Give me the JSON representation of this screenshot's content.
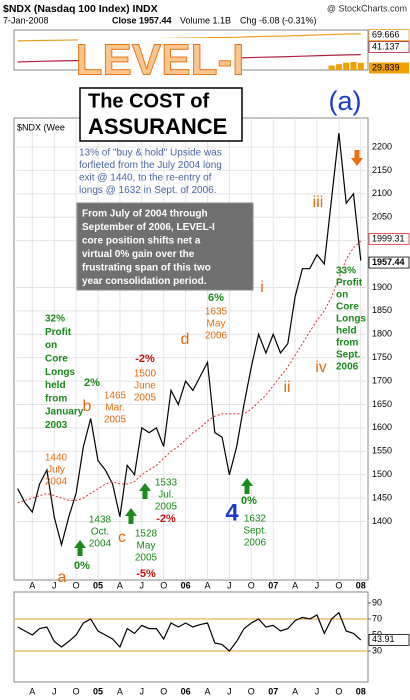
{
  "header": {
    "ticker": "$NDX (Nasdaq 100 Index) INDX",
    "source": "@ StockCharts.com",
    "date": "7-Jan-2008",
    "close": "Close 1957.44",
    "volume": "Volume 1.1B",
    "change": "Chg -6.08 (-0.31%)",
    "logo": "LEVEL-I",
    "title": [
      "The COST of",
      "ASSURANCE"
    ]
  },
  "chart_data": [
    {
      "type": "line",
      "x": [
        "2004-02",
        "2004-03",
        "2004-04",
        "2004-05",
        "2004-06",
        "2004-07",
        "2004-08",
        "2004-09",
        "2004-10",
        "2004-11",
        "2004-12",
        "2005-01",
        "2005-02",
        "2005-03",
        "2005-04",
        "2005-05",
        "2005-06",
        "2005-07",
        "2005-08",
        "2005-09",
        "2005-10",
        "2005-11",
        "2005-12",
        "2006-01",
        "2006-02",
        "2006-03",
        "2006-04",
        "2006-05",
        "2006-06",
        "2006-07",
        "2006-08",
        "2006-09",
        "2006-10",
        "2006-11",
        "2006-12",
        "2007-01",
        "2007-02",
        "2007-03",
        "2007-04",
        "2007-05",
        "2007-06",
        "2007-07",
        "2007-08",
        "2007-09",
        "2007-10",
        "2007-11",
        "2007-12",
        "2008-01"
      ],
      "series": [
        {
          "color": "#000000",
          "values": [
            1470,
            1440,
            1420,
            1480,
            1510,
            1410,
            1350,
            1410,
            1460,
            1560,
            1620,
            1530,
            1510,
            1480,
            1410,
            1520,
            1500,
            1600,
            1590,
            1600,
            1560,
            1680,
            1650,
            1700,
            1680,
            1710,
            1740,
            1590,
            1580,
            1500,
            1560,
            1650,
            1730,
            1800,
            1760,
            1800,
            1760,
            1780,
            1880,
            1940,
            1940,
            1970,
            1950,
            2090,
            2230,
            2080,
            2100,
            1957.44
          ]
        },
        {
          "color": "#e03030",
          "values": [
            1440,
            1445,
            1450,
            1455,
            1460,
            1455,
            1450,
            1445,
            1445,
            1450,
            1460,
            1470,
            1480,
            1485,
            1480,
            1480,
            1485,
            1500,
            1510,
            1520,
            1535,
            1550,
            1560,
            1575,
            1590,
            1600,
            1615,
            1625,
            1630,
            1630,
            1630,
            1630,
            1640,
            1655,
            1670,
            1690,
            1710,
            1730,
            1755,
            1780,
            1805,
            1830,
            1850,
            1880,
            1920,
            1960,
            1985,
            1999.31
          ]
        }
      ],
      "ylim": [
        1275,
        2262
      ],
      "yticks": [
        1400,
        1450,
        1500,
        1550,
        1600,
        1650,
        1700,
        1750,
        1800,
        1850,
        1900,
        2000,
        2050,
        2100,
        2150,
        2200
      ],
      "xticks": [
        {
          "value": "2004-04",
          "label": "A"
        },
        {
          "value": "2004-07",
          "label": "J"
        },
        {
          "value": "2004-10",
          "label": "O"
        },
        {
          "value": "2005-01",
          "label": "05"
        },
        {
          "value": "2005-04",
          "label": "A"
        },
        {
          "value": "2005-07",
          "label": "J"
        },
        {
          "value": "2005-10",
          "label": "O"
        },
        {
          "value": "2006-01",
          "label": "06"
        },
        {
          "value": "2006-04",
          "label": "A"
        },
        {
          "value": "2006-07",
          "label": "J"
        },
        {
          "value": "2006-10",
          "label": "O"
        },
        {
          "value": "2007-01",
          "label": "07"
        },
        {
          "value": "2007-04",
          "label": "A"
        },
        {
          "value": "2007-07",
          "label": "J"
        },
        {
          "value": "2007-10",
          "label": "O"
        },
        {
          "value": "2008-01",
          "label": "08"
        }
      ],
      "grid": true,
      "annotations": [
        {
          "lines": [
            "(a)"
          ],
          "color": "#1a3cc8"
        },
        {
          "lines": [
            "13% of \"buy & hold\" Upside was",
            "forfieted from the July 2004 long",
            "exit @ 1440, to the re-entry of",
            "longs @ 1632 in Sept. of 2006."
          ],
          "color": "#4a66a8"
        },
        {
          "lines": [
            "From July of 2004 through",
            "September of 2006, LEVEL-I",
            "core position shifts net a",
            "virtual 0% gain over the",
            "frustrating span of this two",
            "year consolidation period."
          ],
          "color": "#ffffff",
          "background": "#707070"
        },
        {
          "lines": [
            "32%",
            "Profit",
            "on",
            "Core",
            "Longs",
            "held",
            "from",
            "January",
            "2003"
          ],
          "color": "#1a8a1a"
        },
        {
          "lines": [
            "1440",
            "July",
            "2004"
          ],
          "color": "#e86a10"
        },
        {
          "lines": [
            "b"
          ],
          "color": "#e86a10"
        },
        {
          "lines": [
            "2%"
          ],
          "color": "#1a8a1a"
        },
        {
          "lines": [
            "1465",
            "Mar.",
            "2005"
          ],
          "color": "#e86a10"
        },
        {
          "lines": [
            "-2%"
          ],
          "color": "#cc1010"
        },
        {
          "lines": [
            "1500",
            "June",
            "2005"
          ],
          "color": "#e86a10"
        },
        {
          "lines": [
            "d"
          ],
          "color": "#e86a10"
        },
        {
          "lines": [
            "6%"
          ],
          "color": "#1a8a1a"
        },
        {
          "lines": [
            "1635",
            "May",
            "2006"
          ],
          "color": "#e86a10"
        },
        {
          "lines": [
            "i"
          ],
          "color": "#e86a10"
        },
        {
          "lines": [
            "ii"
          ],
          "color": "#e86a10"
        },
        {
          "lines": [
            "iii"
          ],
          "color": "#e86a10"
        },
        {
          "lines": [
            "iv"
          ],
          "color": "#e86a10"
        },
        {
          "lines": [
            "1533",
            "Jul.",
            "2005"
          ],
          "color": "#1a8a1a"
        },
        {
          "lines": [
            "-2%"
          ],
          "color": "#cc1010"
        },
        {
          "lines": [
            "1438",
            "Oct.",
            "2004"
          ],
          "color": "#1a8a1a"
        },
        {
          "lines": [
            "0%"
          ],
          "color": "#1a8a1a"
        },
        {
          "lines": [
            "c"
          ],
          "color": "#e86a10"
        },
        {
          "lines": [
            "1528",
            "May",
            "2005"
          ],
          "color": "#1a8a1a"
        },
        {
          "lines": [
            "-5%"
          ],
          "color": "#cc1010"
        },
        {
          "lines": [
            "4"
          ],
          "color": "#1a3cc8"
        },
        {
          "lines": [
            "0%"
          ],
          "color": "#1a8a1a"
        },
        {
          "lines": [
            "1632",
            "Sept.",
            "2006"
          ],
          "color": "#1a8a1a"
        },
        {
          "lines": [
            "a"
          ],
          "color": "#e86a10"
        },
        {
          "lines": [
            "33%",
            "Profit",
            "on",
            "Core",
            "Longs",
            "held",
            "from",
            "Sept.",
            "2006"
          ],
          "color": "#1a8a1a"
        },
        {
          "lines": [
            "$NDX (Wee"
          ],
          "color": "#000000"
        }
      ]
    },
    {
      "type": "line",
      "x": [
        "2004-02",
        "2004-05",
        "2004-08",
        "2004-11",
        "2005-02",
        "2005-05",
        "2005-08",
        "2005-11",
        "2006-02",
        "2006-05",
        "2006-08",
        "2006-11",
        "2007-02",
        "2007-05",
        "2007-08",
        "2007-11",
        "2008-01"
      ],
      "series": [
        {
          "color": "#e8a020",
          "values": [
            60,
            60.5,
            61,
            61.5,
            62,
            62.5,
            63,
            63.5,
            64,
            64.5,
            65,
            66,
            66.5,
            67.5,
            68.5,
            69.5,
            69.666
          ]
        },
        {
          "color": "#b02040",
          "values": [
            31,
            32,
            32.5,
            33,
            33.5,
            34,
            34.5,
            35,
            35.5,
            36,
            36.5,
            37.5,
            38,
            39,
            40,
            40.8,
            41.137
          ]
        }
      ],
      "bars": {
        "color": "#f0a000",
        "x": [
          "2007-09",
          "2007-10",
          "2007-11",
          "2007-12",
          "2008-01"
        ],
        "values": [
          26,
          28,
          30,
          31,
          29.839
        ]
      },
      "ylim": [
        20,
        75
      ]
    },
    {
      "type": "line",
      "x": [
        "2004-02",
        "2004-03",
        "2004-04",
        "2004-05",
        "2004-06",
        "2004-07",
        "2004-08",
        "2004-09",
        "2004-10",
        "2004-11",
        "2004-12",
        "2005-01",
        "2005-02",
        "2005-03",
        "2005-04",
        "2005-05",
        "2005-06",
        "2005-07",
        "2005-08",
        "2005-09",
        "2005-10",
        "2005-11",
        "2005-12",
        "2006-01",
        "2006-02",
        "2006-03",
        "2006-04",
        "2006-05",
        "2006-06",
        "2006-07",
        "2006-08",
        "2006-09",
        "2006-10",
        "2006-11",
        "2006-12",
        "2007-01",
        "2007-02",
        "2007-03",
        "2007-04",
        "2007-05",
        "2007-06",
        "2007-07",
        "2007-08",
        "2007-09",
        "2007-10",
        "2007-11",
        "2007-12",
        "2008-01"
      ],
      "series": [
        {
          "color": "#000000",
          "values": [
            60,
            55,
            50,
            58,
            60,
            42,
            35,
            42,
            50,
            65,
            70,
            55,
            50,
            45,
            35,
            58,
            52,
            62,
            58,
            58,
            45,
            65,
            60,
            65,
            60,
            63,
            65,
            40,
            38,
            30,
            42,
            58,
            65,
            70,
            60,
            62,
            55,
            58,
            68,
            72,
            70,
            75,
            52,
            70,
            78,
            55,
            52,
            43.91
          ]
        }
      ],
      "ylim": [
        0,
        100
      ],
      "yticks": [
        30,
        50,
        70,
        90
      ],
      "bands": [
        30,
        70
      ]
    }
  ]
}
